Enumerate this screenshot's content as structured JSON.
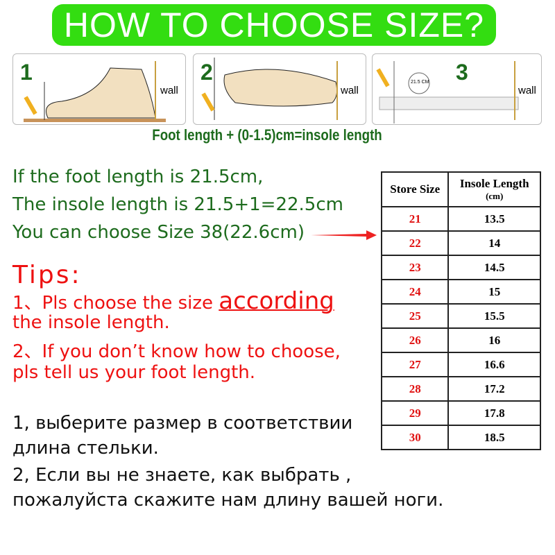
{
  "title": "HOW TO CHOOSE SIZE?",
  "steps": [
    {
      "num": "1",
      "wall": "wall"
    },
    {
      "num": "2",
      "wall": "wall"
    },
    {
      "num": "3",
      "wall": "wall",
      "measure": "21.5 CM"
    }
  ],
  "formula": "Foot length + (0-1.5)cm=insole length",
  "example": [
    "If the foot length is 21.5cm,",
    "The insole length is 21.5+1=22.5cm",
    "You can choose Size 38(22.6cm)"
  ],
  "tips": {
    "heading": "Tips:",
    "line1_prefix": "1、Pls choose the size ",
    "line1_emph": "according",
    "line1_cont": "the insole length.",
    "line2": "2、If you don’t know how to choose,",
    "line2_cont": "pls tell us your foot length."
  },
  "russian": [
    "1, выберите размер в соответствии",
    "длина стельки.",
    "2, Если вы не знаете, как выбрать ,",
    "пожалуйста скажите нам длину вашей ноги."
  ],
  "table": {
    "col1": "Store Size",
    "col2": "Insole Length",
    "col2_unit": "(cm)",
    "rows": [
      [
        "21",
        "13.5"
      ],
      [
        "22",
        "14"
      ],
      [
        "23",
        "14.5"
      ],
      [
        "24",
        "15"
      ],
      [
        "25",
        "15.5"
      ],
      [
        "26",
        "16"
      ],
      [
        "27",
        "16.6"
      ],
      [
        "28",
        "17.2"
      ],
      [
        "29",
        "17.8"
      ],
      [
        "30",
        "18.5"
      ]
    ]
  },
  "colors": {
    "banner": "#33dd11",
    "green_text": "#1d6b1d",
    "red_text": "#ee1111"
  }
}
